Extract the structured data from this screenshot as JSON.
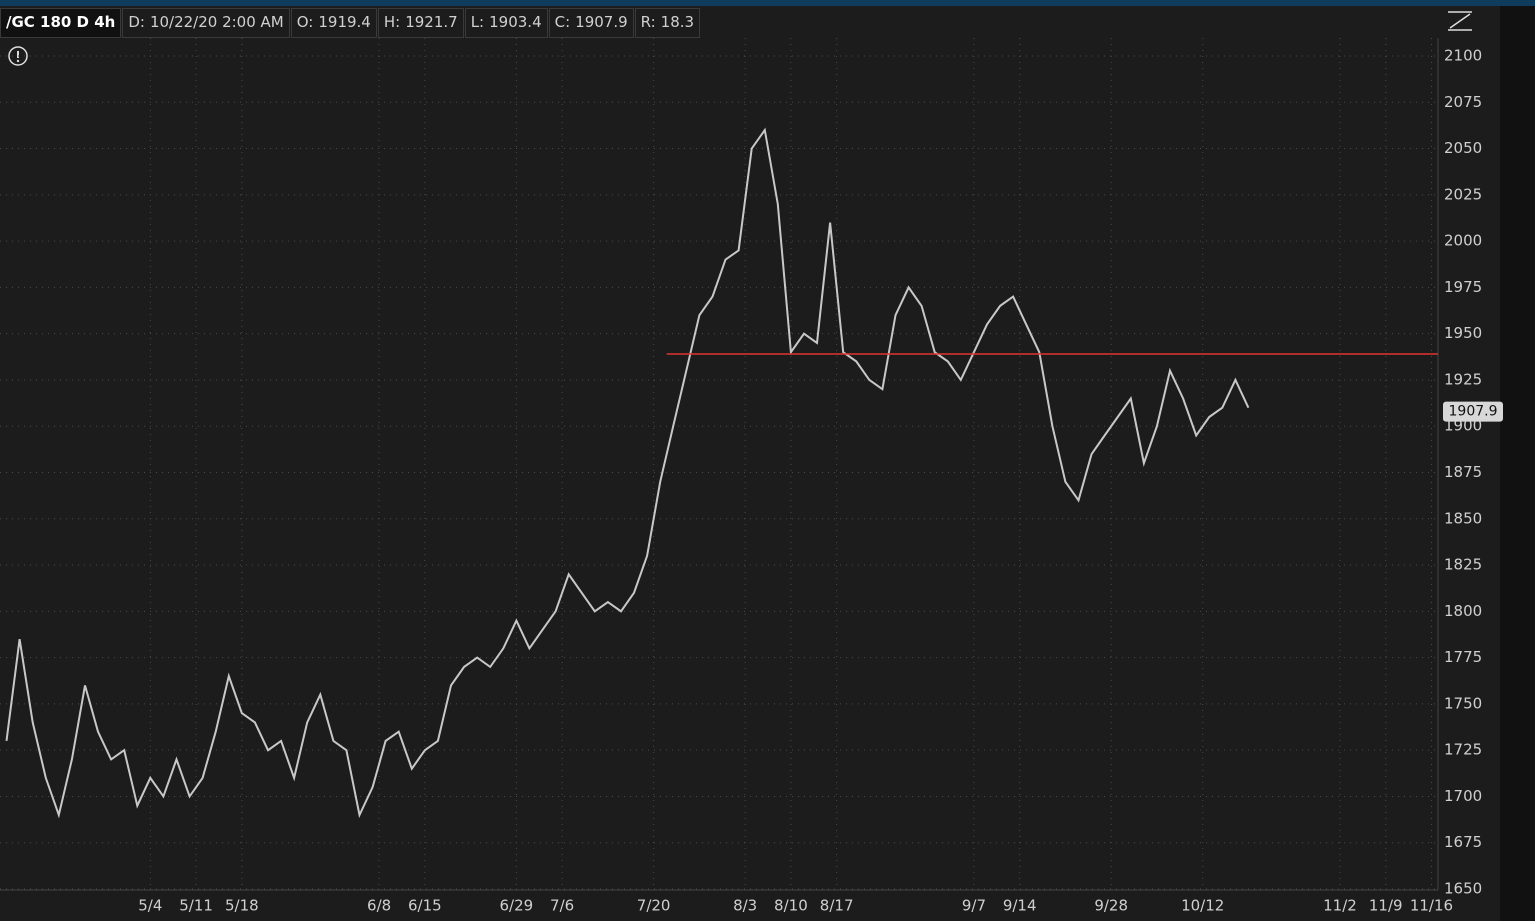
{
  "header": {
    "symbol": "/GC 180 D 4h",
    "fields": [
      {
        "label": "D:",
        "value": "10/22/20 2:00 AM"
      },
      {
        "label": "O:",
        "value": 1919.4
      },
      {
        "label": "H:",
        "value": 1921.7
      },
      {
        "label": "L:",
        "value": 1903.4
      },
      {
        "label": "C:",
        "value": 1907.9
      },
      {
        "label": "R:",
        "value": 18.3
      }
    ]
  },
  "chart_data": {
    "type": "line",
    "color": "#c8c8c8",
    "grid": true,
    "x": [
      103,
      105,
      107,
      109,
      111,
      113,
      115,
      117,
      119,
      121,
      123,
      125,
      127,
      129,
      131,
      133,
      135,
      137,
      139,
      141,
      143,
      145,
      147,
      149,
      151,
      153,
      155,
      157,
      159,
      161,
      163,
      165,
      167,
      169,
      171,
      173,
      175,
      177,
      179,
      181,
      183,
      185,
      187,
      189,
      191,
      193,
      195,
      197,
      199,
      201,
      203,
      205,
      207,
      209,
      211,
      213,
      215,
      217,
      219,
      221,
      223,
      225,
      227,
      229,
      231,
      233,
      235,
      237,
      239,
      241,
      243,
      245,
      247,
      249,
      251,
      253,
      255,
      257,
      259,
      261,
      263,
      265,
      267,
      269,
      271,
      273,
      275,
      277,
      279,
      281,
      283,
      285,
      287,
      289,
      291,
      293
    ],
    "values": [
      1730,
      1785,
      1740,
      1710,
      1690,
      1720,
      1760,
      1735,
      1720,
      1725,
      1695,
      1710,
      1700,
      1720,
      1700,
      1710,
      1735,
      1765,
      1745,
      1740,
      1725,
      1730,
      1710,
      1740,
      1755,
      1730,
      1725,
      1690,
      1705,
      1730,
      1735,
      1715,
      1725,
      1730,
      1760,
      1770,
      1775,
      1770,
      1780,
      1795,
      1780,
      1790,
      1800,
      1820,
      1810,
      1800,
      1805,
      1800,
      1810,
      1830,
      1870,
      1900,
      1930,
      1960,
      1970,
      1990,
      1995,
      2050,
      2060,
      2020,
      1940,
      1950,
      1945,
      2010,
      1940,
      1935,
      1925,
      1920,
      1960,
      1975,
      1965,
      1940,
      1935,
      1925,
      1940,
      1955,
      1965,
      1970,
      1955,
      1940,
      1900,
      1870,
      1860,
      1885,
      1895,
      1905,
      1915,
      1880,
      1900,
      1930,
      1915,
      1895,
      1905,
      1910,
      1925,
      1910
    ],
    "xlim": [
      102,
      322
    ],
    "xticks": [
      {
        "value": 125,
        "label": "5/4"
      },
      {
        "value": 132,
        "label": "5/11"
      },
      {
        "value": 139,
        "label": "5/18"
      },
      {
        "value": 160,
        "label": "6/8"
      },
      {
        "value": 167,
        "label": "6/15"
      },
      {
        "value": 181,
        "label": "6/29"
      },
      {
        "value": 188,
        "label": "7/6"
      },
      {
        "value": 202,
        "label": "7/20"
      },
      {
        "value": 216,
        "label": "8/3"
      },
      {
        "value": 223,
        "label": "8/10"
      },
      {
        "value": 230,
        "label": "8/17"
      },
      {
        "value": 251,
        "label": "9/7"
      },
      {
        "value": 258,
        "label": "9/14"
      },
      {
        "value": 272,
        "label": "9/28"
      },
      {
        "value": 286,
        "label": "10/12"
      },
      {
        "value": 307,
        "label": "11/2"
      },
      {
        "value": 314,
        "label": "11/9"
      },
      {
        "value": 321,
        "label": "11/16"
      }
    ],
    "ylim": [
      1650,
      2100
    ],
    "yticks": [
      1650,
      1675,
      1700,
      1725,
      1750,
      1775,
      1800,
      1825,
      1850,
      1875,
      1900,
      1925,
      1950,
      1975,
      2000,
      2025,
      2050,
      2075,
      2100
    ],
    "reference_line": {
      "value": 1939,
      "x_start": 204,
      "color": "#e0342c"
    },
    "last_price": 1907.9
  }
}
